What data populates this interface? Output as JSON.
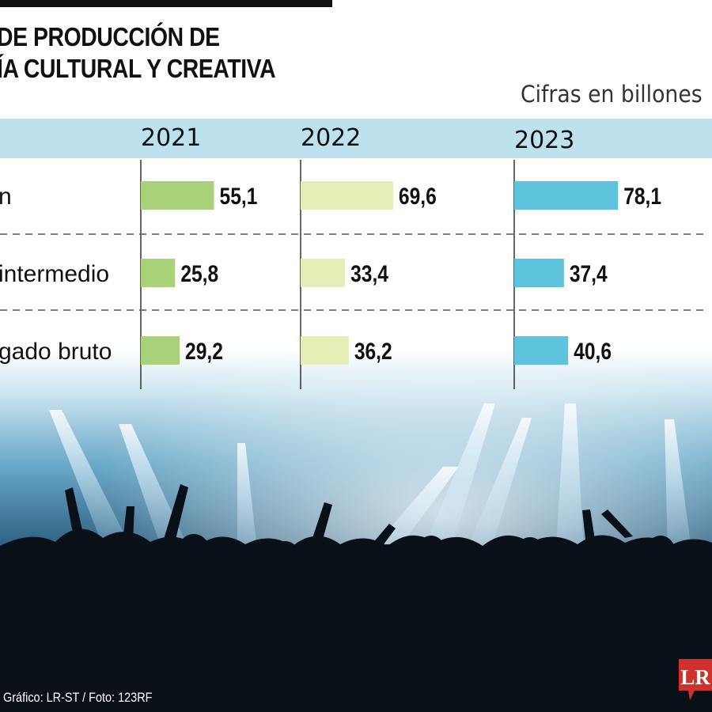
{
  "title": {
    "line1": "DE PRODUCCIÓN DE",
    "line2": "ÍA CULTURAL Y CREATIVA"
  },
  "units_note": "Cifras en billones",
  "credit": "Gráfico: LR-ST / Foto: 123RF",
  "logo_text": "LR",
  "chart_data": {
    "type": "bar",
    "title": "DE PRODUCCIÓN DE / ÍA CULTURAL Y CREATIVA",
    "columns": [
      "2021",
      "2022",
      "2023"
    ],
    "categories": [
      "n",
      "intermedio",
      "gado bruto"
    ],
    "series": [
      {
        "name": "2021",
        "values": [
          55.1,
          25.8,
          29.2
        ],
        "labels": [
          "55,1",
          "25,8",
          "29,2"
        ],
        "color": "#a7d27a"
      },
      {
        "name": "2022",
        "values": [
          69.6,
          33.4,
          36.2
        ],
        "labels": [
          "69,6",
          "33,4",
          "36,2"
        ],
        "color": "#e6eeb7"
      },
      {
        "name": "2023",
        "values": [
          78.1,
          37.4,
          40.6
        ],
        "labels": [
          "78,1",
          "37,4",
          "40,6"
        ],
        "color": "#5ec3dc"
      }
    ],
    "xlim": [
      0,
      80
    ],
    "grid": false,
    "legend": "none"
  },
  "colors": {
    "header_band": "#bde2ed",
    "axis": "#333333",
    "divider": "#555555"
  }
}
